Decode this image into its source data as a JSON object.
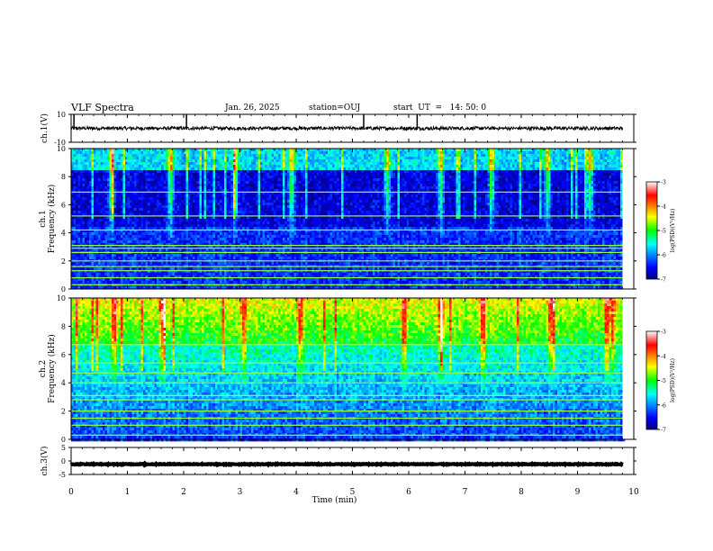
{
  "header": {
    "title": "VLF Spectra",
    "date": "Jan. 26, 2025",
    "station": "station=OUJ",
    "start": "start  UT  =   14: 50: 0"
  },
  "chart_data": [
    {
      "id": "ch1-waveform",
      "type": "line",
      "ylabel": "ch.1(V)",
      "ylim": [
        -10,
        10
      ],
      "yticks": [
        10,
        -10
      ],
      "xlim": [
        0,
        10
      ],
      "baseline": 0,
      "noise_amplitude": 1.2,
      "spikes_min": [
        0.05,
        2.05,
        5.2,
        6.15
      ],
      "data_end_min": 9.8
    },
    {
      "id": "ch1-spectrogram",
      "type": "heatmap",
      "ylabel_lines": [
        "ch.1",
        "Frequency (kHz)"
      ],
      "ylim": [
        0,
        10
      ],
      "yticks": [
        0,
        2,
        4,
        6,
        8,
        10
      ],
      "xlim": [
        0,
        10
      ],
      "data_end_min": 9.8,
      "colorbar": {
        "label": "log(PSD)(V²/Hz)",
        "range": [
          -7,
          -3
        ],
        "ticks": [
          -3,
          -4,
          -5,
          -6,
          -7
        ]
      },
      "line_freqs_khz": [
        0.3,
        0.8,
        1.3,
        1.6,
        2.0,
        2.6,
        2.9,
        3.1,
        4.2,
        5.2,
        6.9
      ],
      "hot_time_min": [
        0.7,
        1.75,
        2.9,
        3.9,
        5.6,
        6.55,
        7.45,
        8.45,
        9.2
      ],
      "level_profile": "low"
    },
    {
      "id": "ch2-spectrogram",
      "type": "heatmap",
      "ylabel_lines": [
        "ch.2",
        "Frequency (kHz)"
      ],
      "ylim": [
        0,
        10
      ],
      "yticks": [
        0,
        2,
        4,
        6,
        8,
        10
      ],
      "xlim": [
        0,
        10
      ],
      "data_end_min": 9.8,
      "colorbar": {
        "label": "log(PSD)(V²/Hz)",
        "range": [
          -7,
          -3
        ],
        "ticks": [
          -3,
          -4,
          -5,
          -6,
          -7
        ]
      },
      "line_freqs_khz": [
        0.3,
        1.0,
        1.5,
        2.0,
        2.8,
        3.1,
        4.0,
        4.7,
        5.4,
        6.7
      ],
      "hot_time_min": [
        0.75,
        1.6,
        3.05,
        4.05,
        5.9,
        6.55,
        7.3,
        8.5,
        9.6
      ],
      "level_profile": "high"
    },
    {
      "id": "ch3-waveform",
      "type": "line",
      "ylabel": "ch.3(V)",
      "ylim": [
        -5,
        5
      ],
      "yticks": [
        5,
        0,
        -5
      ],
      "xlim": [
        0,
        10
      ],
      "baseline": -1.2,
      "noise_amplitude": 0.15,
      "data_end_min": 9.8
    }
  ],
  "xaxis": {
    "label": "Time (min)",
    "ticks": [
      0,
      1,
      2,
      3,
      4,
      5,
      6,
      7,
      8,
      9,
      10
    ]
  }
}
